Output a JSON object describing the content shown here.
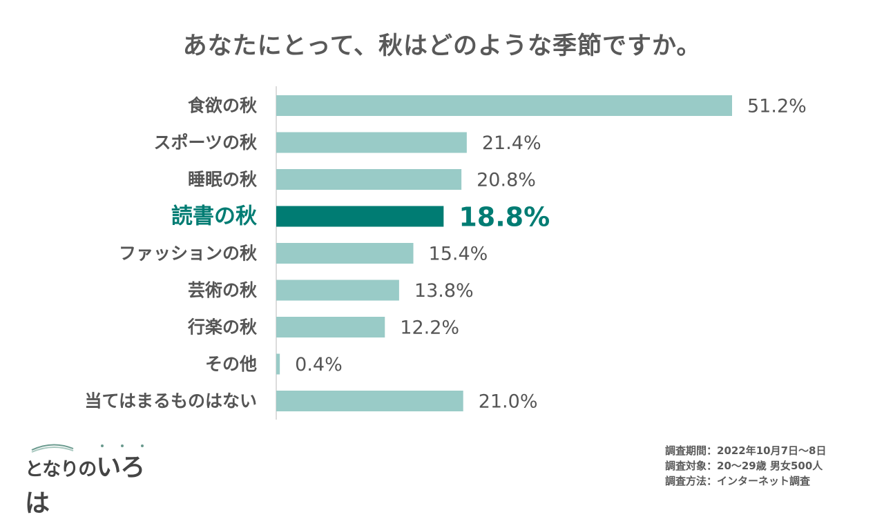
{
  "chart_data": {
    "type": "bar",
    "orientation": "horizontal",
    "title": "あなたにとって、秋はどのような季節ですか。",
    "categories": [
      "食欲の秋",
      "スポーツの秋",
      "睡眠の秋",
      "読書の秋",
      "ファッションの秋",
      "芸術の秋",
      "行楽の秋",
      "その他",
      "当てはまるものはない"
    ],
    "values": [
      51.2,
      21.4,
      20.8,
      18.8,
      15.4,
      13.8,
      12.2,
      0.4,
      21.0
    ],
    "value_labels": [
      "51.2%",
      "21.4%",
      "20.8%",
      "18.8%",
      "15.4%",
      "13.8%",
      "12.2%",
      "0.4%",
      "21.0%"
    ],
    "highlight_index": 3,
    "xlim": [
      0,
      51.2
    ],
    "grid": false,
    "colors": {
      "bar": "#99cbc7",
      "highlight": "#007c73",
      "label": "#555555",
      "axis": "#d0d0d0"
    }
  },
  "logo": {
    "text_small": "となりの",
    "text_big": "いろは"
  },
  "survey": {
    "period": "調査期間：2022年10月7日～8日",
    "target": "調査対象：20～29歳 男女500人",
    "method": "調査方法：インターネット調査"
  }
}
